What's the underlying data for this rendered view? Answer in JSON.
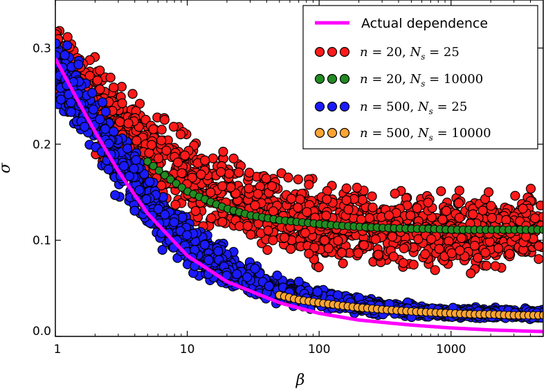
{
  "chart_data": {
    "type": "scatter",
    "title": "",
    "xlabel": "β",
    "ylabel": "σ",
    "xscale": "log",
    "xlim": [
      1,
      5000
    ],
    "ylim": [
      0.0,
      0.35
    ],
    "xticks": [
      1,
      10,
      100,
      1000
    ],
    "xtick_labels": [
      "1",
      "10",
      "100",
      "1000"
    ],
    "yticks": [
      0.0,
      0.1,
      0.2,
      0.3
    ],
    "ytick_labels": [
      "0.0",
      "0.1",
      "0.2",
      "0.3"
    ],
    "grid": false,
    "legend_position": "top-right",
    "series": [
      {
        "name": "Actual dependence",
        "kind": "line",
        "color": "#ff00ff",
        "x": [
          1,
          1.5,
          2,
          3,
          5,
          10,
          20,
          50,
          100,
          200,
          500,
          1000,
          2000,
          5000
        ],
        "y": [
          0.289,
          0.244,
          0.213,
          0.172,
          0.128,
          0.084,
          0.057,
          0.035,
          0.024,
          0.017,
          0.0118,
          0.0088,
          0.0067,
          0.005
        ]
      },
      {
        "name": "n = 20, Ns = 25",
        "legend_parts": [
          "n",
          " = 20, ",
          "N",
          "s",
          " = 25"
        ],
        "kind": "scatter-band",
        "color": "#ff1a1a",
        "x": [
          1,
          2,
          5,
          10,
          20,
          50,
          100,
          200,
          500,
          1000,
          2000,
          5000
        ],
        "y": [
          0.29,
          0.24,
          0.19,
          0.165,
          0.145,
          0.125,
          0.117,
          0.113,
          0.112,
          0.111,
          0.111,
          0.111
        ],
        "spread": [
          0.04,
          0.045,
          0.045,
          0.04,
          0.04,
          0.035,
          0.035,
          0.035,
          0.035,
          0.035,
          0.035,
          0.035
        ]
      },
      {
        "name": "n = 20, Ns = 10000",
        "legend_parts": [
          "n",
          " = 20, ",
          "N",
          "s",
          " = 10000"
        ],
        "kind": "scatter",
        "color": "#228b22",
        "x": [
          5,
          7,
          10,
          15,
          20,
          30,
          50,
          70,
          100,
          150,
          200,
          300,
          500,
          700,
          1000,
          1500,
          2000,
          3000,
          5000
        ],
        "y": [
          0.182,
          0.166,
          0.151,
          0.14,
          0.133,
          0.126,
          0.121,
          0.119,
          0.117,
          0.115,
          0.114,
          0.113,
          0.112,
          0.112,
          0.111,
          0.111,
          0.111,
          0.111,
          0.111
        ]
      },
      {
        "name": "n = 500, Ns = 25",
        "legend_parts": [
          "n",
          " = 500, ",
          "N",
          "s",
          " = 25"
        ],
        "kind": "scatter-band",
        "color": "#1a1aff",
        "x": [
          1,
          2,
          5,
          10,
          20,
          50,
          100,
          200,
          500,
          1000,
          2000,
          5000
        ],
        "y": [
          0.28,
          0.215,
          0.14,
          0.095,
          0.07,
          0.048,
          0.039,
          0.033,
          0.027,
          0.025,
          0.024,
          0.023
        ],
        "spread": [
          0.035,
          0.035,
          0.03,
          0.025,
          0.018,
          0.012,
          0.009,
          0.007,
          0.006,
          0.005,
          0.005,
          0.005
        ]
      },
      {
        "name": "n = 500, Ns = 10000",
        "legend_parts": [
          "n",
          " = 500, ",
          "N",
          "s",
          " = 10000"
        ],
        "kind": "scatter",
        "color": "#ffa533",
        "x": [
          50,
          70,
          100,
          150,
          200,
          300,
          500,
          700,
          1000,
          1500,
          2000,
          3000,
          5000
        ],
        "y": [
          0.043,
          0.038,
          0.035,
          0.032,
          0.03,
          0.028,
          0.026,
          0.025,
          0.024,
          0.023,
          0.023,
          0.022,
          0.022
        ]
      }
    ]
  },
  "colors": {
    "frame": "#000000",
    "marker_edge": "#000000",
    "background": "#ffffff"
  }
}
